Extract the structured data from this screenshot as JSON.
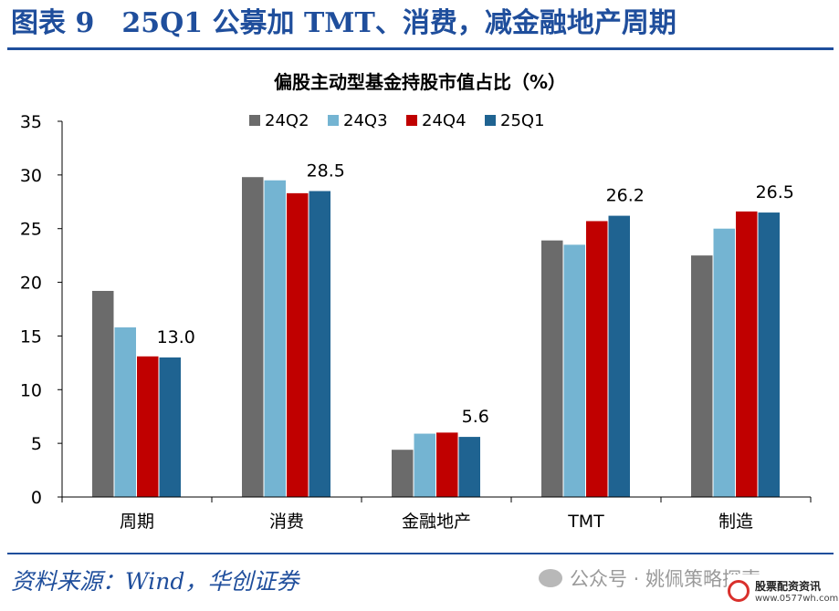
{
  "header": {
    "title": "图表 9　25Q1 公募加 TMT、消费，减金融地产周期"
  },
  "chart_data": {
    "type": "bar",
    "title": "偏股主动型基金持股市值占比（%）",
    "xlabel": "",
    "ylabel": "",
    "ylim": [
      0,
      35
    ],
    "yticks": [
      0,
      5,
      10,
      15,
      20,
      25,
      30,
      35
    ],
    "categories": [
      "周期",
      "消费",
      "金融地产",
      "TMT",
      "制造"
    ],
    "legend_position": "top",
    "series": [
      {
        "name": "24Q2",
        "color": "#6b6b6b",
        "values": [
          19.2,
          29.8,
          4.4,
          23.9,
          22.5
        ]
      },
      {
        "name": "24Q3",
        "color": "#74b4d2",
        "values": [
          15.8,
          29.5,
          5.9,
          23.5,
          25.0
        ]
      },
      {
        "name": "24Q4",
        "color": "#c00000",
        "values": [
          13.1,
          28.3,
          6.0,
          25.7,
          26.6
        ]
      },
      {
        "name": "25Q1",
        "color": "#1f6391",
        "values": [
          13.0,
          28.5,
          5.6,
          26.2,
          26.5
        ]
      }
    ],
    "data_labels": [
      {
        "series": "25Q1",
        "category": "周期",
        "text": "13.0"
      },
      {
        "series": "25Q1",
        "category": "消费",
        "text": "28.5"
      },
      {
        "series": "25Q1",
        "category": "金融地产",
        "text": "5.6"
      },
      {
        "series": "25Q1",
        "category": "TMT",
        "text": "26.2"
      },
      {
        "series": "25Q1",
        "category": "制造",
        "text": "26.5"
      }
    ]
  },
  "footer": {
    "source": "资料来源：Wind，华创证券",
    "watermark": "公众号 · 姚佩策略探索",
    "badge_text": "股票配资资讯",
    "badge_url": "www.0577wh.com"
  }
}
